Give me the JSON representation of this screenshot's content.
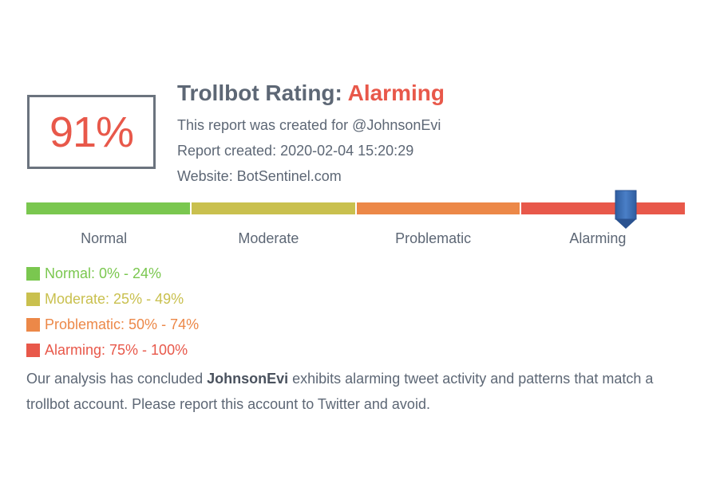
{
  "score": {
    "value": "91%",
    "percent": 91
  },
  "header": {
    "title_prefix": "Trollbot Rating: ",
    "rating": "Alarming"
  },
  "info": {
    "created_for": "This report was created for @JohnsonEvi",
    "created_at": "Report created: 2020-02-04 15:20:29",
    "website": "Website: BotSentinel.com"
  },
  "scale": {
    "segments": [
      {
        "label": "Normal",
        "color": "#7ac74f"
      },
      {
        "label": "Moderate",
        "color": "#c9c04e"
      },
      {
        "label": "Problematic",
        "color": "#ec8848"
      },
      {
        "label": "Alarming",
        "color": "#e8584a"
      }
    ],
    "marker_color": "#3b6db3"
  },
  "legend": [
    {
      "text": "Normal: 0% - 24%",
      "color": "#7ac74f"
    },
    {
      "text": "Moderate: 25% - 49%",
      "color": "#c9c04e"
    },
    {
      "text": "Problematic: 50% - 74%",
      "color": "#ec8848"
    },
    {
      "text": "Alarming: 75% - 100%",
      "color": "#e8584a"
    }
  ],
  "conclusion": {
    "before": "Our analysis has concluded ",
    "account": "JohnsonEvi",
    "after": " exhibits alarming tweet activity and patterns that match a trollbot account. Please report this account to Twitter and avoid."
  }
}
